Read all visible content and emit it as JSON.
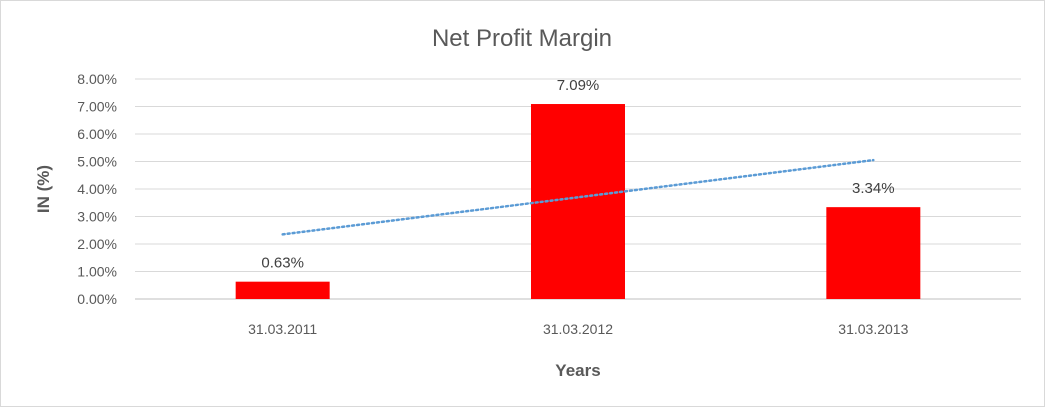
{
  "chart_data": {
    "type": "bar",
    "title": "Net Profit Margin",
    "xlabel": "Years",
    "ylabel": "IN (%)",
    "categories": [
      "31.03.2011",
      "31.03.2012",
      "31.03.2013"
    ],
    "values": [
      0.63,
      7.09,
      3.34
    ],
    "data_labels": [
      "0.63%",
      "7.09%",
      "3.34%"
    ],
    "ylim": [
      0,
      8
    ],
    "yticks": [
      0,
      1,
      2,
      3,
      4,
      5,
      6,
      7,
      8
    ],
    "ytick_labels": [
      "0.00%",
      "1.00%",
      "2.00%",
      "3.00%",
      "4.00%",
      "5.00%",
      "6.00%",
      "7.00%",
      "8.00%"
    ],
    "bar_color": "#ff0000",
    "trendline": {
      "type": "linear",
      "style": "dotted",
      "color": "#5b9bd5",
      "start": 2.35,
      "end": 5.05
    },
    "grid": true,
    "legend": "none"
  }
}
